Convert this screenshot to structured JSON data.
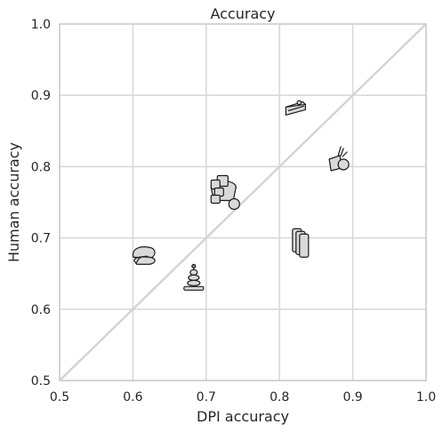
{
  "chart_data": {
    "type": "scatter",
    "title": "Accuracy",
    "xlabel": "DPI accuracy",
    "ylabel": "Human accuracy",
    "xlim": [
      0.5,
      1.0
    ],
    "ylim": [
      0.5,
      1.0
    ],
    "xticks": [
      "0.5",
      "0.6",
      "0.7",
      "0.8",
      "0.9",
      "1.0"
    ],
    "yticks": [
      "0.5",
      "0.6",
      "0.7",
      "0.8",
      "0.9",
      "1.0"
    ],
    "grid": true,
    "diagonal": true,
    "points": [
      {
        "x": 0.822,
        "y": 0.881,
        "icon": "cake-slice-icon"
      },
      {
        "x": 0.88,
        "y": 0.803,
        "icon": "utensils-with-ball-icon"
      },
      {
        "x": 0.72,
        "y": 0.765,
        "icon": "stacked-cups-with-ball-icon"
      },
      {
        "x": 0.825,
        "y": 0.693,
        "icon": "stacked-cards-icon"
      },
      {
        "x": 0.615,
        "y": 0.678,
        "icon": "cushion-icon"
      },
      {
        "x": 0.683,
        "y": 0.643,
        "icon": "ring-stack-toy-icon"
      }
    ],
    "colors": {
      "glyph_fill": "#d9d9d9",
      "glyph_stroke": "#1a1a1a",
      "grid": "#d9d9d9",
      "diagonal": "#d3d3d3"
    }
  }
}
